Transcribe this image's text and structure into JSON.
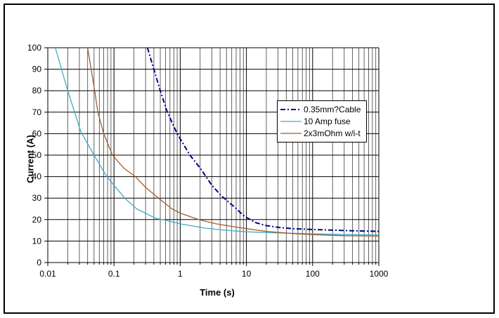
{
  "window": {
    "background": "#ffffff",
    "border_color": "#000000"
  },
  "chart_data": {
    "type": "line",
    "title": "",
    "xlabel": "Time (s)",
    "ylabel": "Current (A)",
    "x_scale": "log",
    "xlim": [
      0.01,
      1000
    ],
    "ylim": [
      0,
      100
    ],
    "x_ticks": [
      {
        "value": 0.01,
        "label": "0.01"
      },
      {
        "value": 0.1,
        "label": "0.1"
      },
      {
        "value": 1,
        "label": "1"
      },
      {
        "value": 10,
        "label": "10"
      },
      {
        "value": 100,
        "label": "100"
      },
      {
        "value": 1000,
        "label": "1000"
      }
    ],
    "y_ticks": [
      0,
      10,
      20,
      30,
      40,
      50,
      60,
      70,
      80,
      90,
      100
    ],
    "grid": "black major horizontal every 10 A, log minor vertical lines on",
    "legend_position": "inside upper right",
    "gridline_color": "#3d3d3d",
    "series": [
      {
        "name": "0.35mm?Cable",
        "color": "#000086",
        "style": "dash-dot",
        "width": 2,
        "x": [
          0.32,
          0.4,
          0.5,
          0.64,
          0.9,
          1.4,
          2,
          3,
          4.2,
          6.5,
          9,
          10,
          14,
          20,
          30,
          50,
          100,
          300,
          1000
        ],
        "y": [
          100,
          90,
          80,
          70,
          60,
          50,
          44,
          36,
          31,
          26,
          22,
          21,
          18.5,
          17.2,
          16.4,
          15.8,
          15.4,
          14.9,
          14.5
        ]
      },
      {
        "name": "10 Amp fuse",
        "color": "#3cAec3",
        "style": "solid",
        "width": 1.3,
        "x": [
          0.013,
          0.02,
          0.0315,
          0.05,
          0.078,
          0.145,
          0.22,
          0.43,
          0.55,
          1,
          2.4,
          5,
          10,
          30,
          100,
          300,
          1000
        ],
        "y": [
          100,
          80,
          61,
          50,
          40,
          30,
          25,
          20.5,
          20,
          18,
          16,
          15,
          14.3,
          13.8,
          13.4,
          13.0,
          12.8
        ]
      },
      {
        "name": "2x3mOhm w/i-t",
        "color": "#a15c2f",
        "style": "solid",
        "width": 1.3,
        "x": [
          0.04,
          0.051,
          0.057,
          0.07,
          0.095,
          0.14,
          0.21,
          0.3,
          0.47,
          0.75,
          1,
          1.9,
          3.5,
          7,
          10,
          20,
          50,
          100,
          300,
          1000
        ],
        "y": [
          100,
          80,
          70,
          60,
          50,
          44,
          40,
          35,
          30,
          25,
          23,
          20,
          18,
          16.5,
          15.8,
          14.5,
          13.5,
          13.0,
          12.5,
          12.3
        ]
      }
    ]
  }
}
